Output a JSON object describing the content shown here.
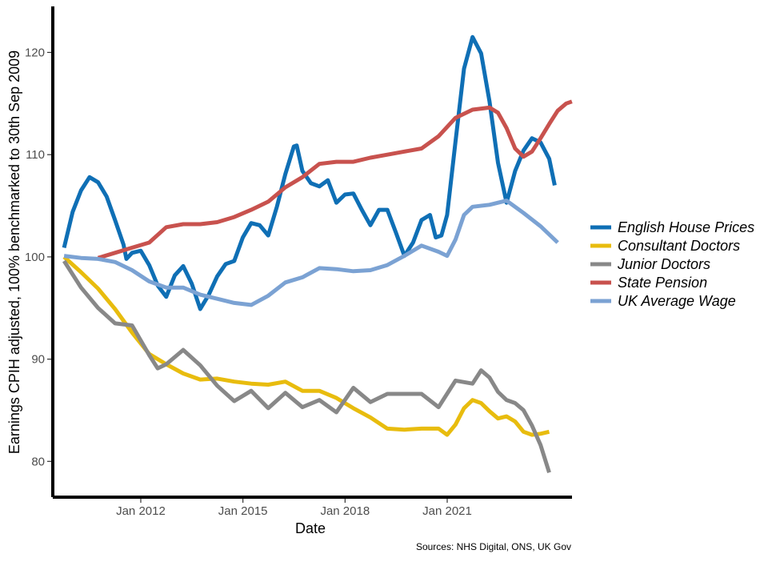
{
  "chart_data": {
    "type": "line",
    "title": "",
    "xlabel": "Date",
    "ylabel": "Earnings CPIH adjusted, 100% benchmarked to 30th Sep 2009",
    "caption": "Sources: NHS Digital, ONS, UK Gov",
    "x_ticks": [
      "Jan 2012",
      "Jan 2015",
      "Jan 2018",
      "Jan 2021"
    ],
    "y_ticks": [
      "80",
      "90",
      "100",
      "110",
      "120"
    ],
    "xlim": [
      "2009-06-01",
      "2024-09-01"
    ],
    "ylim": [
      76.5,
      124.5
    ],
    "legend_position": "right",
    "grid": false,
    "series": [
      {
        "name": "English House Prices",
        "color": "#0F6FB5",
        "points": [
          [
            "2009-09-30",
            100.9
          ],
          [
            "2009-12-31",
            104.4
          ],
          [
            "2010-03-31",
            106.5
          ],
          [
            "2010-06-30",
            107.8
          ],
          [
            "2010-09-30",
            107.3
          ],
          [
            "2010-12-31",
            105.9
          ],
          [
            "2011-03-31",
            103.6
          ],
          [
            "2011-06-30",
            101.2
          ],
          [
            "2011-07-31",
            99.8
          ],
          [
            "2011-09-30",
            100.4
          ],
          [
            "2011-12-31",
            100.6
          ],
          [
            "2012-03-31",
            99.2
          ],
          [
            "2012-06-30",
            97.2
          ],
          [
            "2012-09-30",
            96.1
          ],
          [
            "2012-12-31",
            98.2
          ],
          [
            "2013-03-31",
            99.1
          ],
          [
            "2013-06-30",
            97.4
          ],
          [
            "2013-09-30",
            94.9
          ],
          [
            "2013-12-31",
            96.3
          ],
          [
            "2014-03-31",
            98.1
          ],
          [
            "2014-06-30",
            99.3
          ],
          [
            "2014-09-30",
            99.6
          ],
          [
            "2014-12-31",
            101.9
          ],
          [
            "2015-03-31",
            103.3
          ],
          [
            "2015-06-30",
            103.1
          ],
          [
            "2015-09-30",
            102.1
          ],
          [
            "2015-12-31",
            104.9
          ],
          [
            "2016-03-31",
            108.1
          ],
          [
            "2016-06-30",
            110.8
          ],
          [
            "2016-07-31",
            110.9
          ],
          [
            "2016-09-30",
            108.4
          ],
          [
            "2016-12-31",
            107.2
          ],
          [
            "2017-03-31",
            106.9
          ],
          [
            "2017-06-30",
            107.5
          ],
          [
            "2017-09-30",
            105.3
          ],
          [
            "2017-12-31",
            106.1
          ],
          [
            "2018-03-31",
            106.2
          ],
          [
            "2018-06-30",
            104.6
          ],
          [
            "2018-09-30",
            103.1
          ],
          [
            "2018-12-31",
            104.6
          ],
          [
            "2019-03-31",
            104.6
          ],
          [
            "2019-06-30",
            102.4
          ],
          [
            "2019-09-30",
            100.1
          ],
          [
            "2019-12-31",
            101.4
          ],
          [
            "2020-03-31",
            103.6
          ],
          [
            "2020-06-30",
            104.1
          ],
          [
            "2020-08-31",
            101.9
          ],
          [
            "2020-10-31",
            102.1
          ],
          [
            "2020-12-31",
            104.1
          ],
          [
            "2021-03-31",
            111.3
          ],
          [
            "2021-06-30",
            118.4
          ],
          [
            "2021-09-30",
            121.5
          ],
          [
            "2021-12-31",
            119.9
          ],
          [
            "2022-03-31",
            115.2
          ],
          [
            "2022-06-30",
            109.2
          ],
          [
            "2022-09-30",
            105.3
          ],
          [
            "2022-12-31",
            108.4
          ],
          [
            "2023-03-31",
            110.4
          ],
          [
            "2023-06-30",
            111.6
          ],
          [
            "2023-09-30",
            111.2
          ],
          [
            "2023-12-31",
            109.6
          ],
          [
            "2024-02-29",
            107.0
          ]
        ]
      },
      {
        "name": "Consultant Doctors",
        "color": "#E8BC0E",
        "points": [
          [
            "2009-09-30",
            100.0
          ],
          [
            "2010-03-31",
            98.5
          ],
          [
            "2010-09-30",
            96.9
          ],
          [
            "2011-03-31",
            94.9
          ],
          [
            "2011-09-30",
            92.6
          ],
          [
            "2012-03-31",
            90.5
          ],
          [
            "2012-09-30",
            89.5
          ],
          [
            "2013-03-31",
            88.6
          ],
          [
            "2013-09-30",
            88.0
          ],
          [
            "2014-03-31",
            88.1
          ],
          [
            "2014-09-30",
            87.8
          ],
          [
            "2015-03-31",
            87.6
          ],
          [
            "2015-09-30",
            87.5
          ],
          [
            "2016-03-31",
            87.8
          ],
          [
            "2016-09-30",
            86.9
          ],
          [
            "2017-03-31",
            86.9
          ],
          [
            "2017-09-30",
            86.2
          ],
          [
            "2018-03-31",
            85.2
          ],
          [
            "2018-09-30",
            84.3
          ],
          [
            "2019-03-31",
            83.2
          ],
          [
            "2019-09-30",
            83.1
          ],
          [
            "2020-03-31",
            83.2
          ],
          [
            "2020-09-30",
            83.2
          ],
          [
            "2020-12-31",
            82.6
          ],
          [
            "2021-03-31",
            83.6
          ],
          [
            "2021-06-30",
            85.2
          ],
          [
            "2021-09-30",
            86.0
          ],
          [
            "2021-12-31",
            85.7
          ],
          [
            "2022-03-31",
            84.9
          ],
          [
            "2022-06-30",
            84.2
          ],
          [
            "2022-09-30",
            84.4
          ],
          [
            "2022-12-31",
            83.9
          ],
          [
            "2023-03-31",
            82.9
          ],
          [
            "2023-06-30",
            82.6
          ],
          [
            "2023-09-30",
            82.7
          ],
          [
            "2023-12-31",
            82.9
          ]
        ]
      },
      {
        "name": "Junior Doctors",
        "color": "#888888",
        "points": [
          [
            "2009-09-30",
            99.6
          ],
          [
            "2010-03-31",
            97.0
          ],
          [
            "2010-09-30",
            95.0
          ],
          [
            "2011-03-31",
            93.5
          ],
          [
            "2011-09-30",
            93.3
          ],
          [
            "2012-03-31",
            90.4
          ],
          [
            "2012-06-30",
            89.1
          ],
          [
            "2012-09-30",
            89.5
          ],
          [
            "2013-03-31",
            90.9
          ],
          [
            "2013-09-30",
            89.4
          ],
          [
            "2014-03-31",
            87.4
          ],
          [
            "2014-09-30",
            85.9
          ],
          [
            "2015-03-31",
            86.9
          ],
          [
            "2015-09-30",
            85.2
          ],
          [
            "2016-03-31",
            86.7
          ],
          [
            "2016-09-30",
            85.3
          ],
          [
            "2017-03-31",
            86.0
          ],
          [
            "2017-09-30",
            84.8
          ],
          [
            "2018-03-31",
            87.2
          ],
          [
            "2018-09-30",
            85.8
          ],
          [
            "2019-03-31",
            86.6
          ],
          [
            "2019-09-30",
            86.6
          ],
          [
            "2020-03-31",
            86.6
          ],
          [
            "2020-09-30",
            85.3
          ],
          [
            "2021-03-31",
            87.9
          ],
          [
            "2021-09-30",
            87.6
          ],
          [
            "2021-12-31",
            88.9
          ],
          [
            "2022-03-31",
            88.2
          ],
          [
            "2022-06-30",
            86.8
          ],
          [
            "2022-09-30",
            86.0
          ],
          [
            "2022-12-31",
            85.7
          ],
          [
            "2023-03-31",
            85.0
          ],
          [
            "2023-06-30",
            83.5
          ],
          [
            "2023-09-30",
            81.6
          ],
          [
            "2023-12-31",
            78.9
          ]
        ]
      },
      {
        "name": "State Pension",
        "color": "#C8524E",
        "points": [
          [
            "2010-09-30",
            99.9
          ],
          [
            "2011-03-31",
            100.4
          ],
          [
            "2011-09-30",
            100.9
          ],
          [
            "2012-03-31",
            101.4
          ],
          [
            "2012-09-30",
            102.9
          ],
          [
            "2013-03-31",
            103.2
          ],
          [
            "2013-09-30",
            103.2
          ],
          [
            "2014-03-31",
            103.4
          ],
          [
            "2014-09-30",
            103.9
          ],
          [
            "2015-03-31",
            104.6
          ],
          [
            "2015-09-30",
            105.4
          ],
          [
            "2016-03-31",
            106.8
          ],
          [
            "2016-09-30",
            107.8
          ],
          [
            "2017-03-31",
            109.1
          ],
          [
            "2017-09-30",
            109.3
          ],
          [
            "2018-03-31",
            109.3
          ],
          [
            "2018-09-30",
            109.7
          ],
          [
            "2019-03-31",
            110.0
          ],
          [
            "2019-09-30",
            110.3
          ],
          [
            "2020-03-31",
            110.6
          ],
          [
            "2020-09-30",
            111.8
          ],
          [
            "2021-03-31",
            113.6
          ],
          [
            "2021-09-30",
            114.4
          ],
          [
            "2022-03-31",
            114.6
          ],
          [
            "2022-06-30",
            114.1
          ],
          [
            "2022-09-30",
            112.6
          ],
          [
            "2022-12-31",
            110.6
          ],
          [
            "2023-03-31",
            109.8
          ],
          [
            "2023-06-30",
            110.3
          ],
          [
            "2023-09-30",
            111.6
          ],
          [
            "2023-12-31",
            113.0
          ],
          [
            "2024-03-31",
            114.3
          ],
          [
            "2024-06-30",
            115.0
          ],
          [
            "2024-08-31",
            115.2
          ]
        ]
      },
      {
        "name": "UK Average Wage",
        "color": "#7BA2D3",
        "points": [
          [
            "2009-09-30",
            100.1
          ],
          [
            "2010-03-31",
            99.9
          ],
          [
            "2010-09-30",
            99.8
          ],
          [
            "2011-03-31",
            99.5
          ],
          [
            "2011-09-30",
            98.7
          ],
          [
            "2012-03-31",
            97.6
          ],
          [
            "2012-09-30",
            97.0
          ],
          [
            "2013-03-31",
            97.0
          ],
          [
            "2013-09-30",
            96.3
          ],
          [
            "2014-03-31",
            95.9
          ],
          [
            "2014-09-30",
            95.5
          ],
          [
            "2015-03-31",
            95.3
          ],
          [
            "2015-09-30",
            96.2
          ],
          [
            "2016-03-31",
            97.5
          ],
          [
            "2016-09-30",
            98.0
          ],
          [
            "2017-03-31",
            98.9
          ],
          [
            "2017-09-30",
            98.8
          ],
          [
            "2018-03-31",
            98.6
          ],
          [
            "2018-09-30",
            98.7
          ],
          [
            "2019-03-31",
            99.2
          ],
          [
            "2019-09-30",
            100.1
          ],
          [
            "2020-03-31",
            101.1
          ],
          [
            "2020-09-30",
            100.5
          ],
          [
            "2020-12-31",
            100.1
          ],
          [
            "2021-03-31",
            101.7
          ],
          [
            "2021-06-30",
            104.1
          ],
          [
            "2021-09-30",
            104.9
          ],
          [
            "2022-03-31",
            105.1
          ],
          [
            "2022-09-30",
            105.5
          ],
          [
            "2023-03-31",
            104.3
          ],
          [
            "2023-09-30",
            103.0
          ],
          [
            "2024-03-31",
            101.4
          ]
        ]
      }
    ]
  }
}
